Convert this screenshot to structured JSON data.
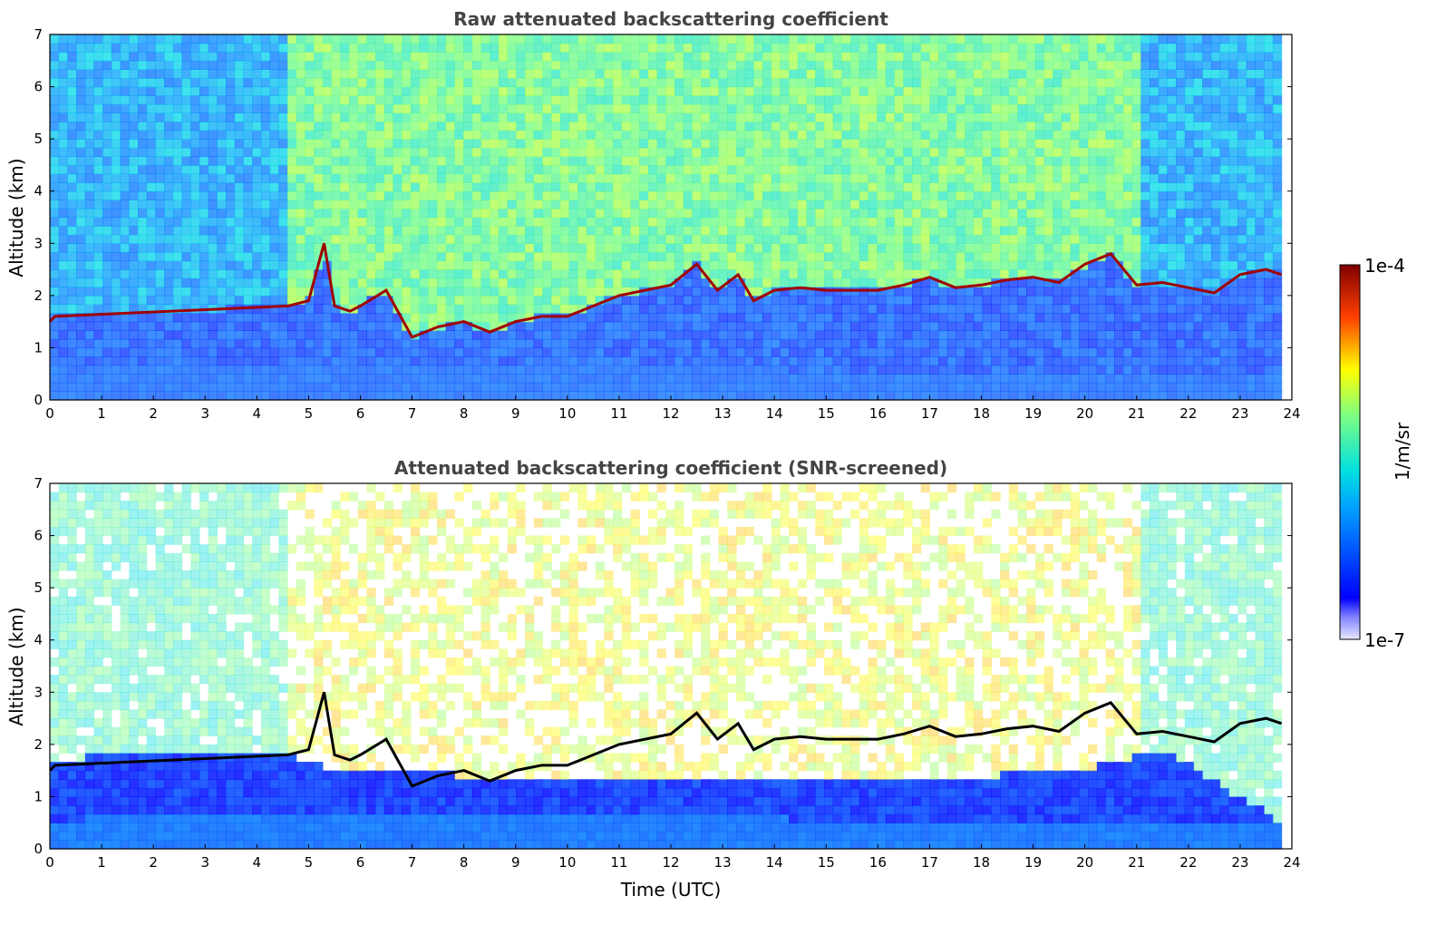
{
  "figure": {
    "colorbar": {
      "max_label": "1e-4",
      "min_label": "1e-7",
      "unit_label": "1/m/sr",
      "colormap": "jet",
      "scale": "log"
    }
  },
  "chart_data": [
    {
      "type": "heatmap",
      "title": "Raw attenuated backscattering coefficient",
      "xlabel": "",
      "ylabel": "Altitude (km)",
      "xlim": [
        0,
        24
      ],
      "ylim": [
        0,
        7
      ],
      "xticks": [
        "0",
        "1",
        "2",
        "3",
        "4",
        "5",
        "6",
        "7",
        "8",
        "9",
        "10",
        "11",
        "12",
        "13",
        "14",
        "15",
        "16",
        "17",
        "18",
        "19",
        "20",
        "21",
        "22",
        "23",
        "24"
      ],
      "yticks": [
        "0",
        "1",
        "2",
        "3",
        "4",
        "5",
        "6",
        "7"
      ],
      "data_end_time": 23.8,
      "cloud_layer": {
        "time": [
          0,
          0.1,
          4.6,
          5.0,
          5.3,
          5.5,
          5.8,
          6.0,
          6.5,
          7.0,
          7.5,
          8.0,
          8.5,
          9.0,
          9.5,
          10.0,
          10.5,
          11.0,
          11.5,
          12.0,
          12.5,
          12.9,
          13.3,
          13.6,
          14.0,
          14.5,
          15.0,
          15.5,
          16.0,
          16.5,
          17.0,
          17.5,
          18.0,
          18.5,
          19.0,
          19.5,
          20.0,
          20.5,
          21.0,
          21.5,
          22.0,
          22.5,
          23.0,
          23.5,
          23.8
        ],
        "altitude": [
          1.5,
          1.6,
          1.8,
          1.9,
          3.0,
          1.8,
          1.7,
          1.8,
          2.1,
          1.2,
          1.4,
          1.5,
          1.3,
          1.5,
          1.6,
          1.6,
          1.8,
          2.0,
          2.1,
          2.2,
          2.6,
          2.1,
          2.4,
          1.9,
          2.1,
          2.15,
          2.1,
          2.1,
          2.1,
          2.2,
          2.35,
          2.15,
          2.2,
          2.3,
          2.35,
          2.25,
          2.6,
          2.8,
          2.2,
          2.25,
          2.15,
          2.05,
          2.4,
          2.5,
          2.4
        ]
      },
      "aerosol_layer_top": {
        "time": [
          0,
          1,
          2,
          3,
          4,
          4.6,
          5,
          6,
          7,
          8,
          9,
          10,
          11,
          12,
          13,
          14,
          15,
          16,
          17,
          18,
          19,
          20,
          21,
          22,
          23,
          23.8
        ],
        "altitude": [
          0.55,
          0.6,
          0.65,
          0.65,
          0.6,
          0.6,
          0.7,
          0.7,
          0.65,
          0.6,
          0.6,
          0.6,
          0.6,
          0.6,
          0.6,
          0.6,
          0.55,
          0.55,
          0.55,
          0.55,
          0.55,
          0.55,
          0.55,
          0.55,
          0.55,
          0.55
        ]
      }
    },
    {
      "type": "heatmap",
      "title": "Attenuated backscattering coefficient (SNR-screened)",
      "xlabel": "Time (UTC)",
      "ylabel": "Altitude (km)",
      "xlim": [
        0,
        24
      ],
      "ylim": [
        0,
        7
      ],
      "xticks": [
        "0",
        "1",
        "2",
        "3",
        "4",
        "5",
        "6",
        "7",
        "8",
        "9",
        "10",
        "11",
        "12",
        "13",
        "14",
        "15",
        "16",
        "17",
        "18",
        "19",
        "20",
        "21",
        "22",
        "23",
        "24"
      ],
      "yticks": [
        "0",
        "1",
        "2",
        "3",
        "4",
        "5",
        "6",
        "7"
      ],
      "data_end_time": 23.8,
      "screened_blue_top": {
        "time": [
          0,
          2,
          4.6,
          5,
          8,
          12,
          16,
          20,
          21.5,
          23.8
        ],
        "altitude": [
          1.7,
          1.85,
          1.8,
          1.6,
          1.4,
          1.4,
          1.3,
          1.5,
          1.9,
          0.5
        ]
      }
    }
  ]
}
